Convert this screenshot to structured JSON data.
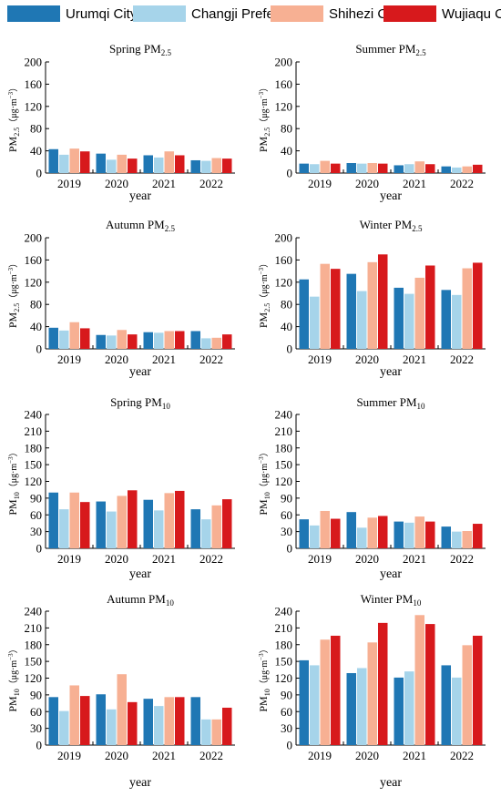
{
  "legend": [
    {
      "name": "Urumqi City",
      "color": "#1f77b4"
    },
    {
      "name": "Changji Prefecture",
      "color": "#a6d4ea"
    },
    {
      "name": "Shihezi City",
      "color": "#f7b093"
    },
    {
      "name": "Wujiaqu City",
      "color": "#d7191c"
    }
  ],
  "chart_data": [
    {
      "type": "bar",
      "title_main": "Spring PM",
      "title_sub": "2.5",
      "ylabel_main": "PM",
      "ylabel_sub": "2.5",
      "ylabel_unit": "（μg·m",
      "ylabel_sup": "−3",
      "ylabel_close": "）",
      "xlabel": "year",
      "categories": [
        "2019",
        "2020",
        "2021",
        "2022"
      ],
      "ylim": [
        0,
        200
      ],
      "yticks": [
        0,
        40,
        80,
        120,
        160,
        200
      ],
      "series": [
        {
          "name": "Urumqi City",
          "values": [
            43,
            35,
            32,
            23
          ]
        },
        {
          "name": "Changji Prefecture",
          "values": [
            33,
            24,
            28,
            22
          ]
        },
        {
          "name": "Shihezi City",
          "values": [
            44,
            33,
            39,
            27
          ]
        },
        {
          "name": "Wujiaqu City",
          "values": [
            39,
            26,
            32,
            26
          ]
        }
      ]
    },
    {
      "type": "bar",
      "title_main": "Summer PM",
      "title_sub": "2.5",
      "ylabel_main": "PM",
      "ylabel_sub": "2.5",
      "ylabel_unit": "（μg·m",
      "ylabel_sup": "−3",
      "ylabel_close": "）",
      "xlabel": "year",
      "categories": [
        "2019",
        "2020",
        "2021",
        "2022"
      ],
      "ylim": [
        0,
        200
      ],
      "yticks": [
        0,
        40,
        80,
        120,
        160,
        200
      ],
      "series": [
        {
          "name": "Urumqi City",
          "values": [
            17,
            18,
            14,
            12
          ]
        },
        {
          "name": "Changji Prefecture",
          "values": [
            16,
            17,
            16,
            10
          ]
        },
        {
          "name": "Shihezi City",
          "values": [
            22,
            18,
            21,
            12
          ]
        },
        {
          "name": "Wujiaqu City",
          "values": [
            17,
            17,
            16,
            15
          ]
        }
      ]
    },
    {
      "type": "bar",
      "title_main": "Autumn PM",
      "title_sub": "2.5",
      "ylabel_main": "PM",
      "ylabel_sub": "2.5",
      "ylabel_unit": "（μg·m",
      "ylabel_sup": "−3",
      "ylabel_close": "）",
      "xlabel": "year",
      "categories": [
        "2019",
        "2020",
        "2021",
        "2022"
      ],
      "ylim": [
        0,
        200
      ],
      "yticks": [
        0,
        40,
        80,
        120,
        160,
        200
      ],
      "series": [
        {
          "name": "Urumqi City",
          "values": [
            38,
            25,
            30,
            32
          ]
        },
        {
          "name": "Changji Prefecture",
          "values": [
            33,
            24,
            29,
            19
          ]
        },
        {
          "name": "Shihezi City",
          "values": [
            48,
            34,
            32,
            20
          ]
        },
        {
          "name": "Wujiaqu City",
          "values": [
            37,
            26,
            32,
            26
          ]
        }
      ]
    },
    {
      "type": "bar",
      "title_main": "Winter PM",
      "title_sub": "2.5",
      "ylabel_main": "PM",
      "ylabel_sub": "2.5",
      "ylabel_unit": "（μg·m",
      "ylabel_sup": "−3",
      "ylabel_close": "）",
      "xlabel": "year",
      "categories": [
        "2019",
        "2020",
        "2021",
        "2022"
      ],
      "ylim": [
        0,
        200
      ],
      "yticks": [
        0,
        40,
        80,
        120,
        160,
        200
      ],
      "series": [
        {
          "name": "Urumqi City",
          "values": [
            125,
            135,
            110,
            106
          ]
        },
        {
          "name": "Changji Prefecture",
          "values": [
            94,
            104,
            99,
            97
          ]
        },
        {
          "name": "Shihezi City",
          "values": [
            153,
            156,
            128,
            145
          ]
        },
        {
          "name": "Wujiaqu City",
          "values": [
            144,
            170,
            150,
            155
          ]
        }
      ]
    },
    {
      "type": "bar",
      "title_main": "Spring PM",
      "title_sub": "10",
      "ylabel_main": "PM",
      "ylabel_sub": "10",
      "ylabel_unit": "（μg·m",
      "ylabel_sup": "−3",
      "ylabel_close": "）",
      "xlabel": "year",
      "categories": [
        "2019",
        "2020",
        "2021",
        "2022"
      ],
      "ylim": [
        0,
        240
      ],
      "yticks": [
        0,
        30,
        60,
        90,
        120,
        150,
        180,
        210,
        240
      ],
      "series": [
        {
          "name": "Urumqi City",
          "values": [
            100,
            84,
            87,
            70
          ]
        },
        {
          "name": "Changji Prefecture",
          "values": [
            70,
            66,
            68,
            52
          ]
        },
        {
          "name": "Shihezi City",
          "values": [
            100,
            94,
            99,
            77
          ]
        },
        {
          "name": "Wujiaqu City",
          "values": [
            83,
            104,
            103,
            88
          ]
        }
      ]
    },
    {
      "type": "bar",
      "title_main": "Summer PM",
      "title_sub": "10",
      "ylabel_main": "PM",
      "ylabel_sub": "10",
      "ylabel_unit": "（μg·m",
      "ylabel_sup": "−3",
      "ylabel_close": "）",
      "xlabel": "year",
      "categories": [
        "2019",
        "2020",
        "2021",
        "2022"
      ],
      "ylim": [
        0,
        240
      ],
      "yticks": [
        0,
        30,
        60,
        90,
        120,
        150,
        180,
        210,
        240
      ],
      "series": [
        {
          "name": "Urumqi City",
          "values": [
            52,
            65,
            48,
            39
          ]
        },
        {
          "name": "Changji Prefecture",
          "values": [
            41,
            37,
            46,
            30
          ]
        },
        {
          "name": "Shihezi City",
          "values": [
            67,
            55,
            57,
            31
          ]
        },
        {
          "name": "Wujiaqu City",
          "values": [
            53,
            58,
            48,
            44
          ]
        }
      ]
    },
    {
      "type": "bar",
      "title_main": "Autumn PM",
      "title_sub": "10",
      "ylabel_main": "PM",
      "ylabel_sub": "10",
      "ylabel_unit": "（μg·m",
      "ylabel_sup": "−3",
      "ylabel_close": "）",
      "xlabel": "year",
      "categories": [
        "2019",
        "2020",
        "2021",
        "2022"
      ],
      "ylim": [
        0,
        240
      ],
      "yticks": [
        0,
        30,
        60,
        90,
        120,
        150,
        180,
        210,
        240
      ],
      "series": [
        {
          "name": "Urumqi City",
          "values": [
            86,
            91,
            83,
            86
          ]
        },
        {
          "name": "Changji Prefecture",
          "values": [
            61,
            64,
            70,
            46
          ]
        },
        {
          "name": "Shihezi City",
          "values": [
            107,
            127,
            86,
            46
          ]
        },
        {
          "name": "Wujiaqu City",
          "values": [
            88,
            77,
            86,
            67
          ]
        }
      ]
    },
    {
      "type": "bar",
      "title_main": "Winter PM",
      "title_sub": "10",
      "ylabel_main": "PM",
      "ylabel_sub": "10",
      "ylabel_unit": "（μg·m",
      "ylabel_sup": "−3",
      "ylabel_close": "）",
      "xlabel": "year",
      "categories": [
        "2019",
        "2020",
        "2021",
        "2022"
      ],
      "ylim": [
        0,
        240
      ],
      "yticks": [
        0,
        30,
        60,
        90,
        120,
        150,
        180,
        210,
        240
      ],
      "series": [
        {
          "name": "Urumqi City",
          "values": [
            152,
            129,
            121,
            143
          ]
        },
        {
          "name": "Changji Prefecture",
          "values": [
            143,
            138,
            132,
            121
          ]
        },
        {
          "name": "Shihezi City",
          "values": [
            189,
            184,
            233,
            179
          ]
        },
        {
          "name": "Wujiaqu City",
          "values": [
            196,
            219,
            217,
            196
          ]
        }
      ]
    }
  ]
}
